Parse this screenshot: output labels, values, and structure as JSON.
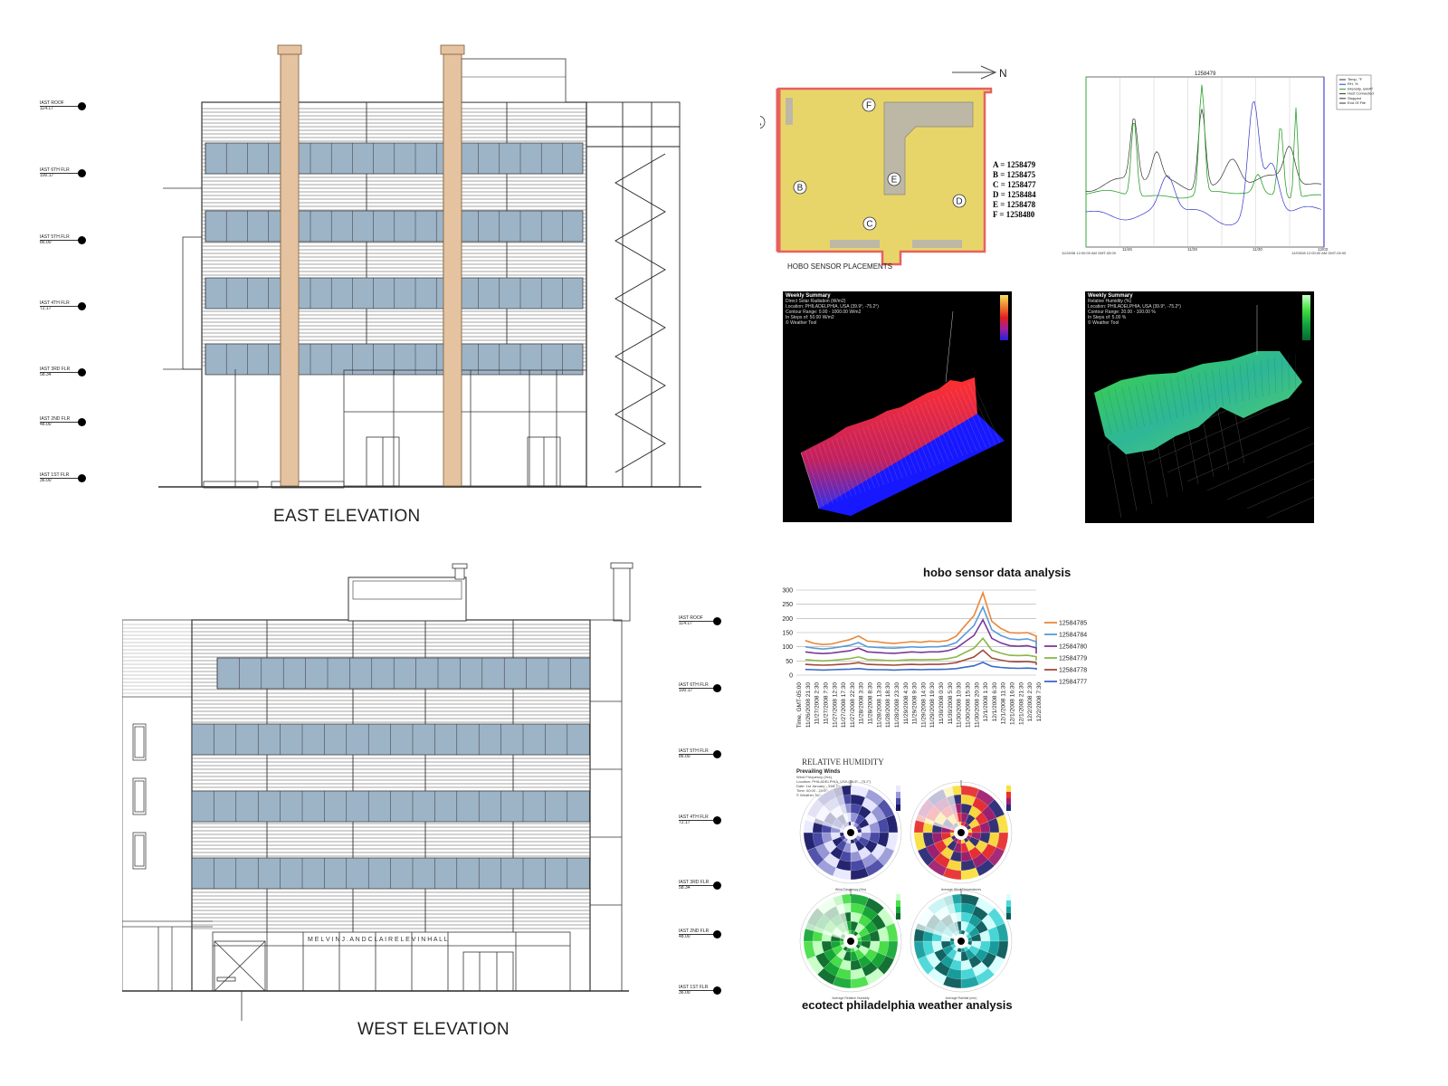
{
  "east_elevation": {
    "caption": "EAST ELEVATION",
    "levels": [
      {
        "name": "IAST ROOF",
        "value": "114.17"
      },
      {
        "name": "IAST 6TH FLR",
        "value": "100.17"
      },
      {
        "name": "IAST 5TH FLR",
        "value": "86.00"
      },
      {
        "name": "IAST 4TH FLR",
        "value": "72.17"
      },
      {
        "name": "IAST 3RD FLR",
        "value": "58.34"
      },
      {
        "name": "IAST 2ND FLR",
        "value": "48.00"
      },
      {
        "name": "IAST 1ST FLR",
        "value": "36.00"
      }
    ]
  },
  "west_elevation": {
    "caption": "WEST  ELEVATION",
    "sign_text": "M E L V I N   J .   A N D   C L A I R E   L E V I N   H A L L",
    "levels": [
      {
        "name": "IAST ROOF",
        "value": "114.17"
      },
      {
        "name": "IAST 6TH FLR",
        "value": "100.17"
      },
      {
        "name": "IAST 5TH FLR",
        "value": "86.00"
      },
      {
        "name": "IAST 4TH FLR",
        "value": "72.17"
      },
      {
        "name": "IAST 3RD FLR",
        "value": "58.34"
      },
      {
        "name": "IAST 2ND FLR",
        "value": "48.00"
      },
      {
        "name": "IAST 1ST FLR",
        "value": "36.00"
      }
    ]
  },
  "sensor_plan": {
    "caption": "HOBO SENSOR PLACEMENTS",
    "north_label": "N",
    "markers": [
      "A",
      "B",
      "C",
      "D",
      "E",
      "F"
    ],
    "key": [
      "A = 1258479",
      "B = 1258475",
      "C = 1258477",
      "D = 1258484",
      "E = 1258478",
      "F = 1258480"
    ],
    "colors": {
      "floor": "#e8d56a",
      "wall": "#e86060",
      "core": "#bdb8a6"
    }
  },
  "sensor_chart": {
    "title": "1258479",
    "legend": [
      "Temp, °F",
      "RH, %",
      "Intensity, lum/ft²",
      "Host Connected",
      "Stopped",
      "End Of File"
    ],
    "x_labels": [
      "11/26",
      "11/28",
      "11/30",
      "12/02"
    ],
    "x_start": "11/26/08 12:00:00 AM GMT-05:00",
    "x_end": "12/03/08 12:00:00 AM GMT-05:00",
    "colors": {
      "temp": "#333333",
      "rh": "#3333cc",
      "light": "#2aa02a"
    }
  },
  "weekly_summary_radiation": {
    "title": "Weekly Summary",
    "subtitle": "Direct Solar Radiation (W/m2)",
    "info": [
      "Location: PHILADELPHIA, USA (39.9°, -75.2°)",
      "Contour Range: 0.00 - 1000.00 W/m2",
      "In Steps of: 50.00 W/m2",
      "© Weather Tool"
    ]
  },
  "weekly_summary_humidity": {
    "title": "Weekly Summary",
    "subtitle": "Relative Humidity (%)",
    "info": [
      "Location: PHILADELPHIA, USA (39.9°, -75.2°)",
      "Contour Range: 20.00 - 100.00 %",
      "In Steps of: 5.00 %",
      "© Weather Tool"
    ]
  },
  "hobo_analysis": {
    "title": "hobo sensor data analysis",
    "chart_data": {
      "type": "line",
      "ylim": [
        0,
        300
      ],
      "yticks": [
        0,
        50,
        100,
        150,
        200,
        250,
        300
      ],
      "categories": [
        "Time, GMT-05:00",
        "11/26/2008 21:30",
        "11/27/2008 2:30",
        "11/27/2008 7:30",
        "11/27/2008 12:30",
        "11/27/2008 17:30",
        "11/27/2008 22:30",
        "11/28/2008 3:30",
        "11/28/2008 8:30",
        "11/28/2008 13:30",
        "11/28/2008 18:30",
        "11/28/2008 23:30",
        "11/29/2008 4:30",
        "11/29/2008 9:30",
        "11/29/2008 14:30",
        "11/29/2008 19:30",
        "11/30/2008 0:30",
        "11/30/2008 5:30",
        "11/30/2008 10:30",
        "11/30/2008 15:30",
        "11/30/2008 20:30",
        "12/1/2008 1:30",
        "12/1/2008 6:30",
        "12/1/2008 11:30",
        "12/1/2008 16:30",
        "12/1/2008 21:30",
        "12/2/2008 2:30",
        "12/2/2008 7:30"
      ],
      "series": [
        {
          "name": "12584785",
          "color": "#e8883a",
          "values": [
            122,
            112,
            108,
            110,
            118,
            125,
            138,
            120,
            118,
            114,
            112,
            115,
            118,
            116,
            120,
            118,
            122,
            138,
            175,
            210,
            290,
            190,
            165,
            150,
            148,
            150,
            138,
            110
          ]
        },
        {
          "name": "12584784",
          "color": "#5a9ad8",
          "values": [
            100,
            95,
            92,
            95,
            100,
            105,
            115,
            100,
            98,
            96,
            95,
            97,
            100,
            98,
            100,
            100,
            104,
            115,
            145,
            175,
            240,
            160,
            140,
            128,
            125,
            128,
            118,
            92
          ]
        },
        {
          "name": "12584780",
          "color": "#7a3a9a",
          "values": [
            82,
            78,
            76,
            78,
            82,
            86,
            95,
            82,
            80,
            78,
            77,
            79,
            82,
            80,
            82,
            82,
            86,
            95,
            118,
            140,
            195,
            130,
            114,
            104,
            102,
            104,
            96,
            76
          ]
        },
        {
          "name": "12584779",
          "color": "#8ab848",
          "values": [
            55,
            52,
            50,
            52,
            55,
            58,
            64,
            55,
            54,
            52,
            51,
            53,
            55,
            54,
            55,
            55,
            58,
            64,
            80,
            95,
            130,
            88,
            78,
            70,
            69,
            70,
            65,
            52
          ]
        },
        {
          "name": "12584778",
          "color": "#a04a3a",
          "values": [
            38,
            36,
            35,
            36,
            38,
            40,
            44,
            38,
            37,
            36,
            35,
            37,
            38,
            37,
            38,
            38,
            40,
            44,
            54,
            64,
            88,
            60,
            53,
            48,
            47,
            48,
            44,
            36
          ]
        },
        {
          "name": "12584777",
          "color": "#3a6ac8",
          "values": [
            20,
            19,
            18,
            19,
            20,
            21,
            23,
            20,
            19,
            19,
            18,
            19,
            20,
            19,
            20,
            20,
            21,
            23,
            28,
            33,
            45,
            31,
            27,
            25,
            24,
            25,
            23,
            19
          ]
        }
      ]
    }
  },
  "winds": {
    "header": "RELATIVE HUMIDITY",
    "title": "Prevailing Winds",
    "subtitle": "Wind Frequency (Hrs)",
    "info": [
      "Location: PHILADELPHIA, USA (39.9°, -75.2°)",
      "Date: 1st January - 31st December",
      "Time: 00:00 - 24:00",
      "© Weather Tool"
    ],
    "roses": [
      {
        "label": "Wind Frequency (Hrs)",
        "colors": [
          "#e8e8ff",
          "#9a9ad8",
          "#4a4aa8",
          "#1a1a68"
        ]
      },
      {
        "label": "Average Wind Temperatures",
        "colors": [
          "#f8e040",
          "#e83030",
          "#a02070",
          "#2a2a78"
        ]
      },
      {
        "label": "Average Relative Humidity",
        "colors": [
          "#c8ffc8",
          "#4ae04a",
          "#18a838",
          "#0a6a2a"
        ]
      },
      {
        "label": "Average Rainfall (mm)",
        "colors": [
          "#d8ffff",
          "#4ad8d8",
          "#18a0a0",
          "#0a5a5a"
        ]
      }
    ]
  },
  "ecotect": {
    "title": "ecotect philadelphia weather analysis"
  }
}
